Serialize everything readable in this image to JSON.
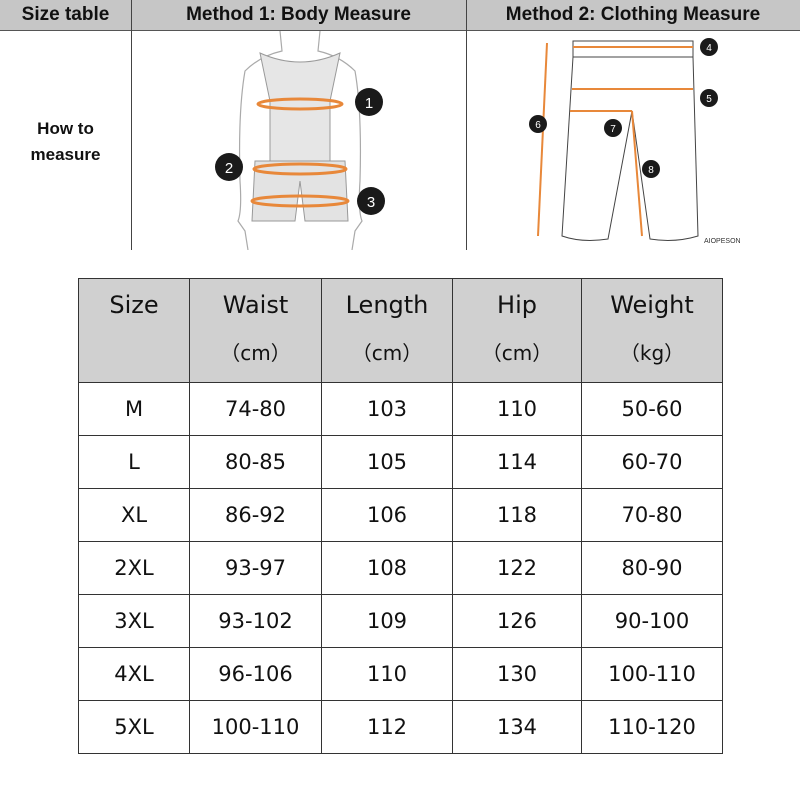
{
  "header": {
    "size_table": "Size table",
    "method1": "Method 1: Body  Measure",
    "method2": "Method 2: Clothing Measure"
  },
  "how_to_measure": [
    "How to",
    "measure"
  ],
  "body_markers": [
    "1",
    "2",
    "3"
  ],
  "clothing_markers": [
    "4",
    "5",
    "6",
    "7",
    "8"
  ],
  "watermark": "AIOPESON",
  "accent_color": "#e8883a",
  "table": {
    "columns": [
      {
        "label": "Size",
        "unit": ""
      },
      {
        "label": "Waist",
        "unit": "（cm）"
      },
      {
        "label": "Length",
        "unit": "（cm）"
      },
      {
        "label": "Hip",
        "unit": "（cm）"
      },
      {
        "label": "Weight",
        "unit": "（kg）"
      }
    ],
    "rows": [
      [
        "M",
        "74-80",
        "103",
        "110",
        "50-60"
      ],
      [
        "L",
        "80-85",
        "105",
        "114",
        "60-70"
      ],
      [
        "XL",
        "86-92",
        "106",
        "118",
        "70-80"
      ],
      [
        "2XL",
        "93-97",
        "108",
        "122",
        "80-90"
      ],
      [
        "3XL",
        "93-102",
        "109",
        "126",
        "90-100"
      ],
      [
        "4XL",
        "96-106",
        "110",
        "130",
        "100-110"
      ],
      [
        "5XL",
        "100-110",
        "112",
        "134",
        "110-120"
      ]
    ]
  }
}
